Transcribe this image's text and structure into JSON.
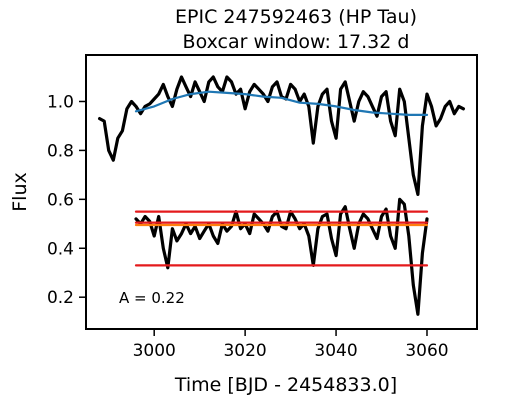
{
  "chart_data": {
    "type": "line",
    "title": "EPIC 247592463 (HP Tau)",
    "subtitle": "Boxcar window: 17.32 d",
    "xlabel": "Time [BJD - 2454833.0]",
    "ylabel": "Flux",
    "xlim": [
      2985,
      3071
    ],
    "ylim": [
      0.07,
      1.19
    ],
    "xticks": [
      3000,
      3020,
      3040,
      3060
    ],
    "yticks": [
      0.2,
      0.4,
      0.6,
      0.8,
      1.0
    ],
    "ytick_labels": [
      "0.2",
      "0.4",
      "0.6",
      "0.8",
      "1.0"
    ],
    "grid": false,
    "annotation": "A = 0.22",
    "series": [
      {
        "role": "raw-flux",
        "color": "#000000",
        "x": [
          2988.0,
          2989.0,
          2990.0,
          2991.0,
          2992.0,
          2993.0,
          2994.0,
          2995.0,
          2996.0,
          2997.0,
          2998.0,
          2999.0,
          3000.0,
          3001.0,
          3002.0,
          3003.0,
          3004.0,
          3005.0,
          3006.0,
          3007.0,
          3008.0,
          3009.0,
          3010.0,
          3011.0,
          3012.0,
          3013.0,
          3014.0,
          3015.0,
          3016.0,
          3017.0,
          3018.0,
          3019.0,
          3020.0,
          3021.0,
          3022.0,
          3023.0,
          3024.0,
          3025.0,
          3026.0,
          3027.0,
          3028.0,
          3029.0,
          3030.0,
          3031.0,
          3032.0,
          3033.0,
          3034.0,
          3035.0,
          3036.0,
          3037.0,
          3038.0,
          3039.0,
          3040.0,
          3041.0,
          3042.0,
          3043.0,
          3044.0,
          3045.0,
          3046.0,
          3047.0,
          3048.0,
          3049.0,
          3050.0,
          3051.0,
          3052.0,
          3053.0,
          3054.0,
          3055.0,
          3056.0,
          3057.0,
          3058.0,
          3059.0,
          3060.0,
          3061.0,
          3062.0,
          3063.0,
          3064.0,
          3065.0,
          3066.0,
          3067.0,
          3068.0
        ],
        "y": [
          0.93,
          0.92,
          0.8,
          0.76,
          0.85,
          0.88,
          0.97,
          1.0,
          0.98,
          0.95,
          0.98,
          0.99,
          1.01,
          1.03,
          1.07,
          1.02,
          0.98,
          1.05,
          1.1,
          1.06,
          1.02,
          1.08,
          1.04,
          1.0,
          1.08,
          1.1,
          1.06,
          1.04,
          1.1,
          1.08,
          1.03,
          1.05,
          0.97,
          1.04,
          1.07,
          1.05,
          1.03,
          1.0,
          1.06,
          1.08,
          1.02,
          1.01,
          1.07,
          1.05,
          1.0,
          1.03,
          0.98,
          0.83,
          0.98,
          1.03,
          1.05,
          0.92,
          0.85,
          1.05,
          1.08,
          1.0,
          0.92,
          1.0,
          1.04,
          1.02,
          0.98,
          0.94,
          1.02,
          1.04,
          0.92,
          0.86,
          1.05,
          1.0,
          0.85,
          0.7,
          0.62,
          0.9,
          1.03,
          0.98,
          0.9,
          0.93,
          0.98,
          1.0,
          0.95,
          0.98,
          0.97
        ]
      },
      {
        "role": "boxcar-smooth",
        "color": "#1f77b4",
        "x": [
          2996,
          3000,
          3004,
          3008,
          3012,
          3016,
          3020,
          3024,
          3028,
          3032,
          3036,
          3040,
          3044,
          3048,
          3052,
          3056,
          3060
        ],
        "y": [
          0.96,
          0.98,
          1.01,
          1.03,
          1.04,
          1.035,
          1.03,
          1.02,
          1.015,
          0.995,
          0.99,
          0.98,
          0.965,
          0.955,
          0.95,
          0.945,
          0.945
        ]
      },
      {
        "role": "detrended-flux",
        "color": "#000000",
        "x": [
          2996.0,
          2997.0,
          2998.0,
          2999.0,
          3000.0,
          3001.0,
          3002.0,
          3003.0,
          3004.0,
          3005.0,
          3006.0,
          3007.0,
          3008.0,
          3009.0,
          3010.0,
          3011.0,
          3012.0,
          3013.0,
          3014.0,
          3015.0,
          3016.0,
          3017.0,
          3018.0,
          3019.0,
          3020.0,
          3021.0,
          3022.0,
          3023.0,
          3024.0,
          3025.0,
          3026.0,
          3027.0,
          3028.0,
          3029.0,
          3030.0,
          3031.0,
          3032.0,
          3033.0,
          3034.0,
          3035.0,
          3036.0,
          3037.0,
          3038.0,
          3039.0,
          3040.0,
          3041.0,
          3042.0,
          3043.0,
          3044.0,
          3045.0,
          3046.0,
          3047.0,
          3048.0,
          3049.0,
          3050.0,
          3051.0,
          3052.0,
          3053.0,
          3054.0,
          3055.0,
          3056.0,
          3057.0,
          3058.0,
          3059.0,
          3060.0
        ],
        "y": [
          0.52,
          0.5,
          0.53,
          0.51,
          0.45,
          0.53,
          0.4,
          0.32,
          0.48,
          0.43,
          0.46,
          0.5,
          0.46,
          0.49,
          0.44,
          0.47,
          0.5,
          0.45,
          0.42,
          0.5,
          0.47,
          0.49,
          0.55,
          0.48,
          0.5,
          0.46,
          0.54,
          0.52,
          0.5,
          0.47,
          0.53,
          0.55,
          0.49,
          0.48,
          0.55,
          0.52,
          0.48,
          0.5,
          0.45,
          0.33,
          0.48,
          0.53,
          0.54,
          0.44,
          0.37,
          0.54,
          0.57,
          0.48,
          0.4,
          0.5,
          0.54,
          0.52,
          0.48,
          0.44,
          0.53,
          0.56,
          0.45,
          0.4,
          0.6,
          0.58,
          0.45,
          0.25,
          0.13,
          0.38,
          0.52
        ]
      },
      {
        "role": "median-line",
        "color": "#ff7f0e",
        "x": [
          2996,
          3060
        ],
        "y": [
          0.495,
          0.495
        ]
      },
      {
        "role": "upper-limit",
        "color": "#e41a1c",
        "x": [
          2996,
          3060
        ],
        "y": [
          0.55,
          0.55
        ]
      },
      {
        "role": "lower-limit",
        "color": "#e41a1c",
        "x": [
          2996,
          3060
        ],
        "y": [
          0.33,
          0.33
        ]
      },
      {
        "role": "median-red",
        "color": "#e41a1c",
        "x": [
          2996,
          3060
        ],
        "y": [
          0.505,
          0.505
        ]
      }
    ]
  }
}
